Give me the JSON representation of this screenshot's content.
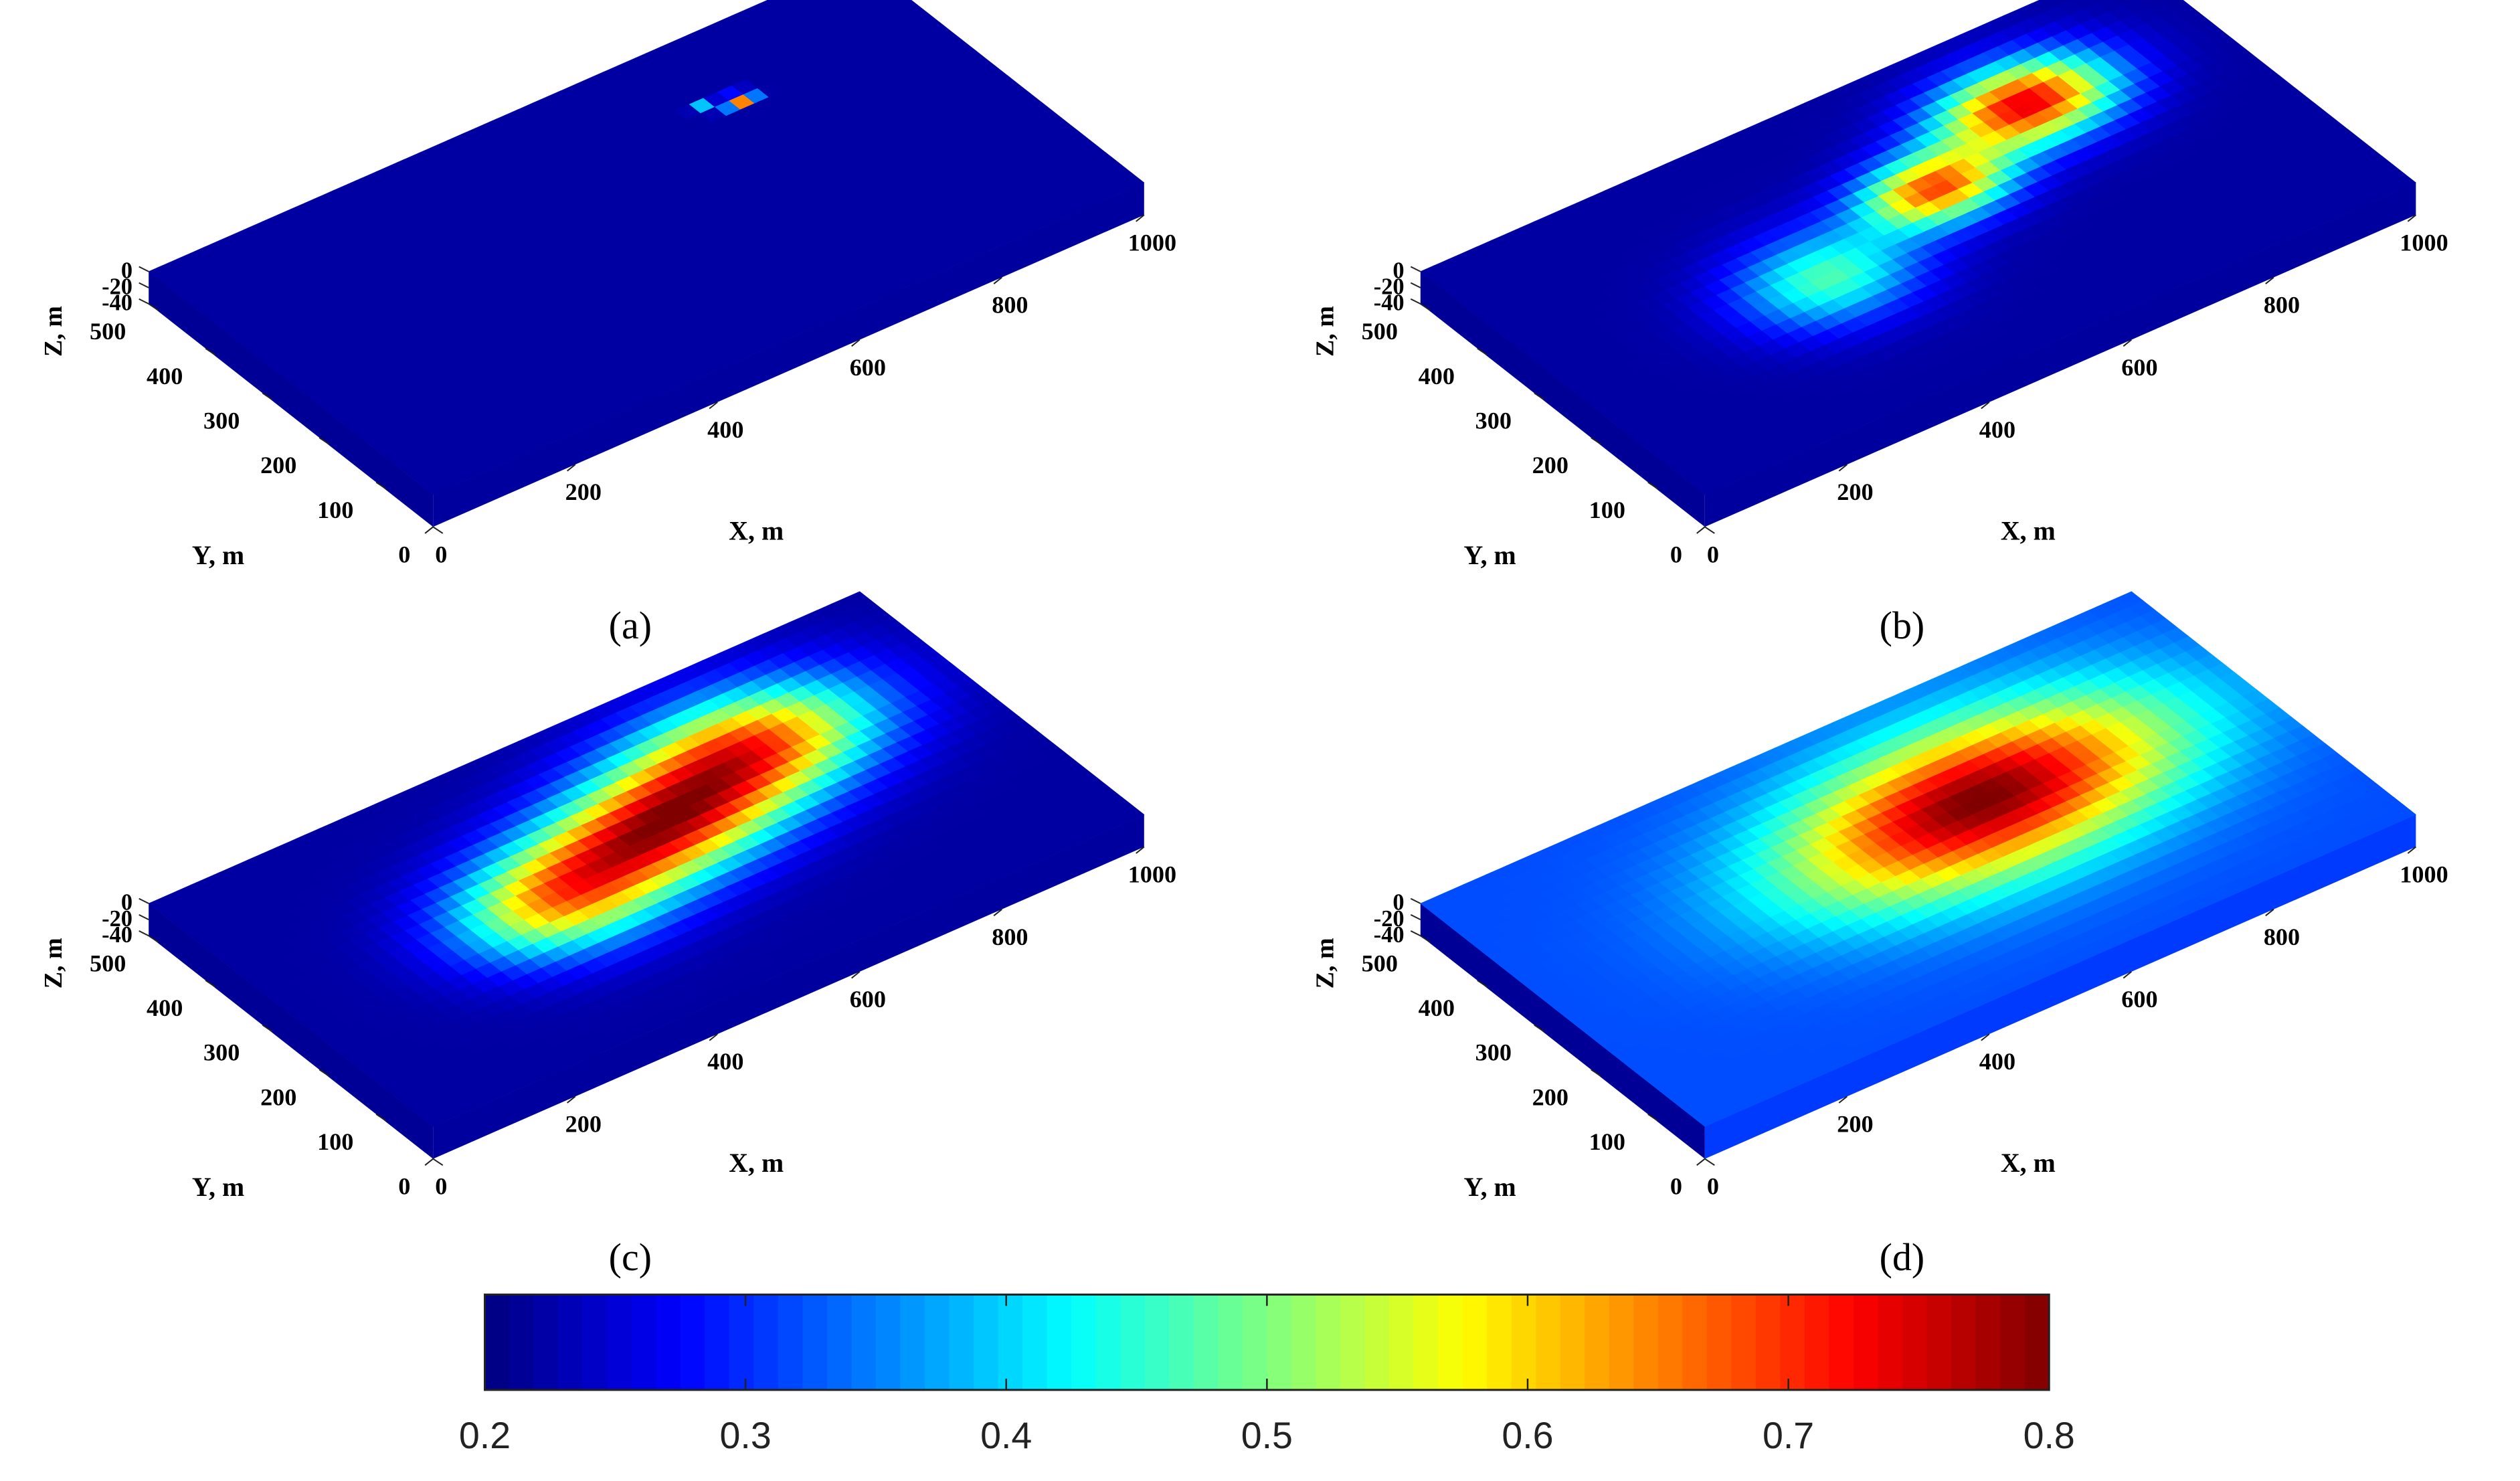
{
  "chart_data": {
    "type": "heatmap",
    "subtype": "3d-slab-surface",
    "panels": [
      {
        "label": "(a)",
        "xlabel": "X, m",
        "ylabel": "Y, m",
        "zlabel": "Z, m",
        "xticks": [
          "0",
          "200",
          "400",
          "600",
          "800",
          "1000"
        ],
        "yticks": [
          "0",
          "100",
          "200",
          "300",
          "400",
          "500"
        ],
        "zticks": [
          "0",
          "-20",
          "-40"
        ],
        "xlim": [
          0,
          1000
        ],
        "ylim": [
          0,
          500
        ],
        "zlim": [
          -40,
          0
        ],
        "background": 0.22,
        "hotspots": [
          {
            "x": 730,
            "y": 375,
            "sx": 18,
            "sy": 10,
            "amp": 0.55
          },
          {
            "x": 690,
            "y": 385,
            "sx": 12,
            "sy": 8,
            "amp": 0.25
          }
        ]
      },
      {
        "label": "(b)",
        "xlabel": "X, m",
        "ylabel": "Y, m",
        "zlabel": "Z, m",
        "xticks": [
          "0",
          "200",
          "400",
          "600",
          "800",
          "1000"
        ],
        "yticks": [
          "0",
          "100",
          "200",
          "300",
          "400",
          "500"
        ],
        "zticks": [
          "0",
          "-20",
          "-40"
        ],
        "xlim": [
          0,
          1000
        ],
        "ylim": [
          0,
          500
        ],
        "zlim": [
          -40,
          0
        ],
        "background": 0.22,
        "hotspots": [
          {
            "x": 740,
            "y": 360,
            "sx": 110,
            "sy": 70,
            "amp": 0.52
          },
          {
            "x": 560,
            "y": 295,
            "sx": 90,
            "sy": 60,
            "amp": 0.45
          },
          {
            "x": 360,
            "y": 235,
            "sx": 110,
            "sy": 80,
            "amp": 0.25
          }
        ]
      },
      {
        "label": "(c)",
        "xlabel": "X, m",
        "ylabel": "Y, m",
        "zlabel": "Z, m",
        "xticks": [
          "0",
          "200",
          "400",
          "600",
          "800",
          "1000"
        ],
        "yticks": [
          "0",
          "100",
          "200",
          "300",
          "400",
          "500"
        ],
        "zticks": [
          "0",
          "-20",
          "-40"
        ],
        "xlim": [
          0,
          1000
        ],
        "ylim": [
          0,
          500
        ],
        "zlim": [
          -40,
          0
        ],
        "background": 0.22,
        "hotspots": [
          {
            "x": 720,
            "y": 345,
            "sx": 160,
            "sy": 95,
            "amp": 0.45
          },
          {
            "x": 540,
            "y": 285,
            "sx": 150,
            "sy": 90,
            "amp": 0.45
          },
          {
            "x": 370,
            "y": 245,
            "sx": 130,
            "sy": 90,
            "amp": 0.35
          }
        ]
      },
      {
        "label": "(d)",
        "xlabel": "X, m",
        "ylabel": "Y, m",
        "zlabel": "Z, m",
        "xticks": [
          "0",
          "200",
          "400",
          "600",
          "800",
          "1000"
        ],
        "yticks": [
          "0",
          "100",
          "200",
          "300",
          "400",
          "500"
        ],
        "zticks": [
          "0",
          "-20",
          "-40"
        ],
        "xlim": [
          0,
          1000
        ],
        "ylim": [
          0,
          500
        ],
        "zlim": [
          -40,
          0
        ],
        "background": 0.32,
        "hotspots": [
          {
            "x": 650,
            "y": 300,
            "sx": 240,
            "sy": 125,
            "amp": 0.42
          },
          {
            "x": 500,
            "y": 270,
            "sx": 220,
            "sy": 120,
            "amp": 0.1
          }
        ]
      }
    ],
    "colorbar": {
      "colormap": "jet",
      "range": [
        0.2,
        0.8
      ],
      "ticks": [
        "0.2",
        "0.3",
        "0.4",
        "0.5",
        "0.6",
        "0.7",
        "0.8"
      ],
      "orientation": "horizontal",
      "placement": "bottom"
    }
  }
}
